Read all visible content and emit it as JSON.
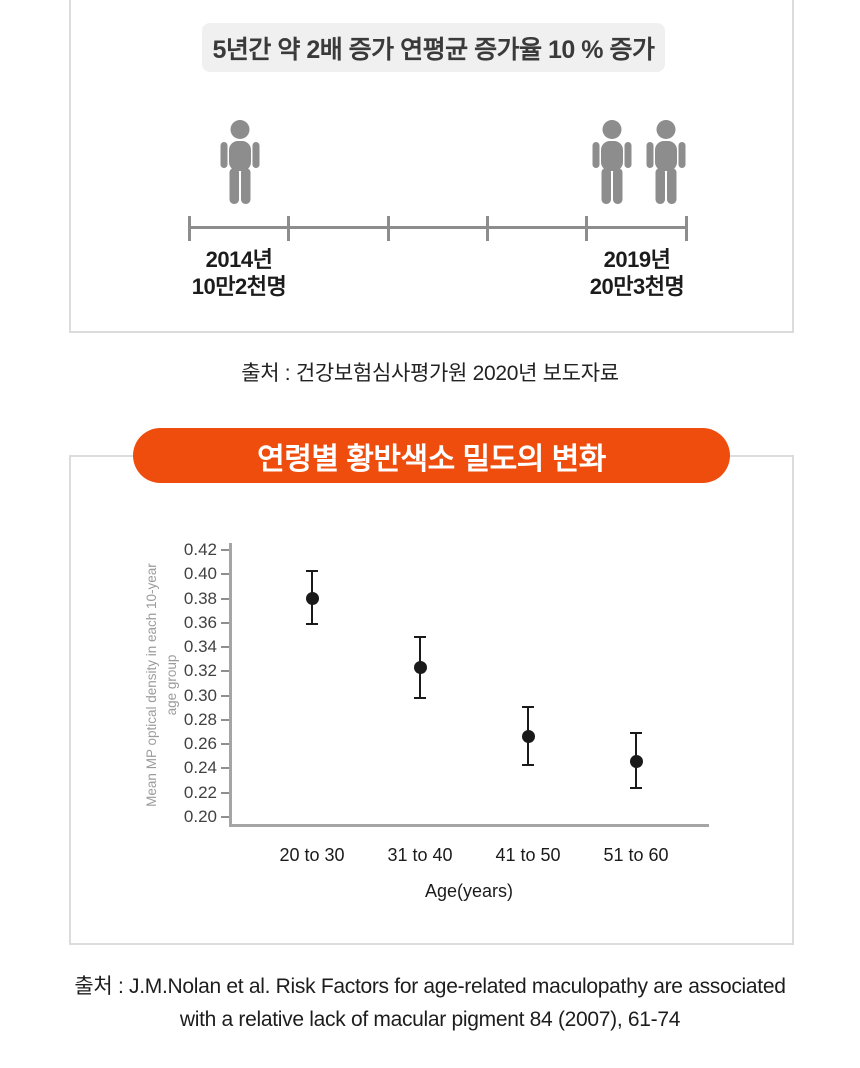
{
  "colors": {
    "accent_orange": "#ee4d0d",
    "icon_gray": "#8d8d8d",
    "panel_border": "#dcdcdc",
    "header_pill_bg": "#f0f0f0",
    "axis_gray": "#a5a5a5",
    "point_black": "#1a1a1a"
  },
  "panel1": {
    "headline": "5년간 약 2배 증가 연평균 증가율 10 % 증가",
    "timeline": {
      "tick_count": 6,
      "start": {
        "year": "2014년",
        "count": "10만2천명",
        "persons": 1
      },
      "end": {
        "year": "2019년",
        "count": "20만3천명",
        "persons": 2
      }
    }
  },
  "source1": "출처 : 건강보험심사평가원 2020년 보도자료",
  "panel2": {
    "title": "연령별 황반색소 밀도의 변화"
  },
  "chart_data": {
    "type": "scatter",
    "variant": "mean-with-error-bars",
    "title": "연령별 황반색소 밀도의 변화",
    "categories": [
      "20 to 30",
      "31 to 40",
      "41 to 50",
      "51 to 60"
    ],
    "means": [
      0.38,
      0.323,
      0.266,
      0.246
    ],
    "upper": [
      0.403,
      0.348,
      0.291,
      0.269
    ],
    "lower": [
      0.359,
      0.298,
      0.243,
      0.224
    ],
    "xlabel": "Age(years)",
    "ylabel": [
      "Mean MP optical density in each 10-year",
      "age group"
    ],
    "ylim": [
      0.2,
      0.42
    ],
    "ytick_step": 0.02,
    "yticks": [
      "0.42",
      "0.40",
      "0.38",
      "0.36",
      "0.34",
      "0.32",
      "0.30",
      "0.28",
      "0.26",
      "0.24",
      "0.22",
      "0.20"
    ],
    "grid": false,
    "legend": null
  },
  "source2": {
    "line1": "출처 : J.M.Nolan et al. Risk Factors for age-related maculopathy are associated",
    "line2": "with a relative lack of macular pigment 84 (2007), 61-74"
  }
}
